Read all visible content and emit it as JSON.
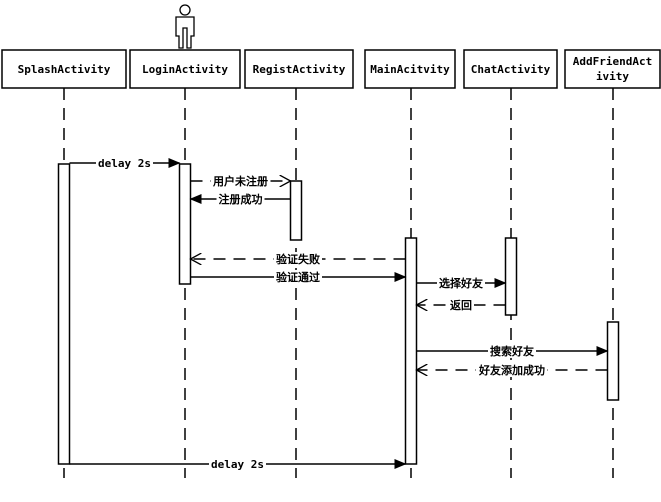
{
  "diagram": {
    "type": "sequence",
    "participants": [
      {
        "id": "splash",
        "label_lines": [
          "SplashActivity"
        ]
      },
      {
        "id": "login",
        "label_lines": [
          "LoginActivity"
        ],
        "actor": true
      },
      {
        "id": "regist",
        "label_lines": [
          "RegistActivity"
        ]
      },
      {
        "id": "main",
        "label_lines": [
          "MainAcitvity"
        ]
      },
      {
        "id": "chat",
        "label_lines": [
          "ChatActivity"
        ]
      },
      {
        "id": "addfriend",
        "label_lines": [
          "AddFriendAct",
          "ivity"
        ]
      }
    ],
    "messages": [
      {
        "from": "splash",
        "to": "login",
        "label": "delay 2s",
        "style": "sync"
      },
      {
        "from": "login",
        "to": "regist",
        "label": "用户未注册",
        "style": "dashed"
      },
      {
        "from": "regist",
        "to": "login",
        "label": "注册成功",
        "style": "sync"
      },
      {
        "from": "main",
        "to": "login",
        "label": "验证失败",
        "style": "dashed"
      },
      {
        "from": "login",
        "to": "main",
        "label": "验证通过",
        "style": "sync"
      },
      {
        "from": "main",
        "to": "chat",
        "label": "选择好友",
        "style": "sync"
      },
      {
        "from": "chat",
        "to": "main",
        "label": "返回",
        "style": "dashed"
      },
      {
        "from": "main",
        "to": "addfriend",
        "label": "搜索好友",
        "style": "sync"
      },
      {
        "from": "addfriend",
        "to": "main",
        "label": "好友添加成功",
        "style": "dashed"
      },
      {
        "from": "splash",
        "to": "main",
        "label": "delay 2s",
        "style": "sync"
      }
    ]
  }
}
